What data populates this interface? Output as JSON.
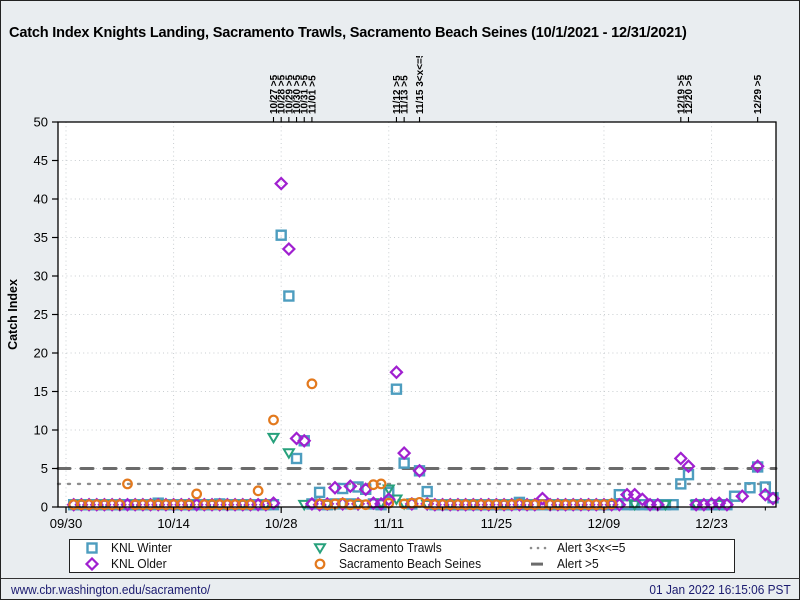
{
  "page": {
    "title": "Catch Index Knights Landing, Sacramento Trawls, Sacramento Beach Seines (10/1/2021 - 12/31/2021)",
    "footer": {
      "url": "www.cbr.washington.edu/sacramento/",
      "timestamp": "01 Jan 2022 16:15:06 PST"
    }
  },
  "chart_data": {
    "type": "scatter",
    "title": "Catch Index Knights Landing, Sacramento Trawls, Sacramento Beach Seines (10/1/2021 - 12/31/2021)",
    "xlabel": "",
    "ylabel": "Catch Index",
    "ylim": [
      0,
      50
    ],
    "yticks": [
      0,
      5,
      10,
      15,
      20,
      25,
      30,
      35,
      40,
      45,
      50
    ],
    "x_start_date": "09/30/2021",
    "xticks": [
      {
        "day": 0,
        "label": "09/30"
      },
      {
        "day": 14,
        "label": "10/14"
      },
      {
        "day": 28,
        "label": "10/28"
      },
      {
        "day": 42,
        "label": "11/11"
      },
      {
        "day": 56,
        "label": "11/25"
      },
      {
        "day": 70,
        "label": "12/09"
      },
      {
        "day": 84,
        "label": "12/23"
      }
    ],
    "minor_tick_days": [
      7,
      21,
      35,
      49,
      63,
      77,
      91
    ],
    "grid": true,
    "legend_position": "bottom",
    "colors": {
      "knl_winter": "#4d9dbf",
      "knl_older": "#a020d0",
      "sacramento_trawls": "#27a17c",
      "sacramento_beach_seines": "#e3791d",
      "alert_dotted": "#8c8c8c",
      "alert_dashed": "#6b6b6b",
      "gridline": "#c9ced1",
      "footer_text": "#1b1b70"
    },
    "alert_lines": [
      {
        "name": "Alert 3<x<=5",
        "value": 3,
        "style": "dotted",
        "color": "#8c8c8c"
      },
      {
        "name": "Alert >5",
        "value": 5,
        "style": "dashed",
        "color": "#6b6b6b"
      }
    ],
    "alert_annotations": [
      {
        "day": 27,
        "label": "10/27 >5"
      },
      {
        "day": 28,
        "label": "10/28 >5"
      },
      {
        "day": 29,
        "label": "10/29 >5"
      },
      {
        "day": 30,
        "label": "10/30 >5"
      },
      {
        "day": 31,
        "label": "10/31 >5"
      },
      {
        "day": 32,
        "label": "11/01 >5"
      },
      {
        "day": 43,
        "label": "11/12 >5"
      },
      {
        "day": 44,
        "label": "11/13 >5"
      },
      {
        "day": 46,
        "label": "11/15 3<x<=5"
      },
      {
        "day": 80,
        "label": "12/19 >5"
      },
      {
        "day": 81,
        "label": "12/20 >5"
      },
      {
        "day": 90,
        "label": "12/29 >5"
      }
    ],
    "series": [
      {
        "name": "KNL Winter",
        "marker": "square",
        "color": "#4d9dbf",
        "points": [
          [
            1,
            0.3
          ],
          [
            2,
            0.3
          ],
          [
            3,
            0.3
          ],
          [
            4,
            0.3
          ],
          [
            5,
            0.3
          ],
          [
            6,
            0.3
          ],
          [
            7,
            0.3
          ],
          [
            8,
            0.3
          ],
          [
            9,
            0.3
          ],
          [
            10,
            0.3
          ],
          [
            11,
            0.3
          ],
          [
            12,
            0.5
          ],
          [
            13,
            0.3
          ],
          [
            14,
            0.3
          ],
          [
            15,
            0.3
          ],
          [
            16,
            0.3
          ],
          [
            17,
            0.3
          ],
          [
            18,
            0.3
          ],
          [
            19,
            0.3
          ],
          [
            20,
            0.4
          ],
          [
            21,
            0.3
          ],
          [
            22,
            0.3
          ],
          [
            23,
            0.3
          ],
          [
            24,
            0.3
          ],
          [
            25,
            0.3
          ],
          [
            26,
            0.3
          ],
          [
            27,
            0.3
          ],
          [
            28,
            35.3
          ],
          [
            29,
            27.4
          ],
          [
            30,
            6.3
          ],
          [
            31,
            8.6
          ],
          [
            32,
            0.4
          ],
          [
            33,
            1.9
          ],
          [
            34,
            0.3
          ],
          [
            35,
            0.4
          ],
          [
            36,
            2.4
          ],
          [
            37,
            0.4
          ],
          [
            38,
            2.6
          ],
          [
            39,
            2.3
          ],
          [
            40,
            0.4
          ],
          [
            41,
            0.3
          ],
          [
            42,
            1.9
          ],
          [
            43,
            15.3
          ],
          [
            44,
            5.7
          ],
          [
            45,
            0.4
          ],
          [
            46,
            4.7
          ],
          [
            47,
            2.0
          ],
          [
            48,
            0.3
          ],
          [
            49,
            0.3
          ],
          [
            50,
            0.3
          ],
          [
            51,
            0.3
          ],
          [
            52,
            0.3
          ],
          [
            53,
            0.3
          ],
          [
            54,
            0.3
          ],
          [
            55,
            0.3
          ],
          [
            56,
            0.3
          ],
          [
            57,
            0.3
          ],
          [
            58,
            0.3
          ],
          [
            59,
            0.6
          ],
          [
            60,
            0.3
          ],
          [
            61,
            0.3
          ],
          [
            62,
            0.3
          ],
          [
            63,
            0.3
          ],
          [
            64,
            0.3
          ],
          [
            65,
            0.3
          ],
          [
            66,
            0.3
          ],
          [
            67,
            0.3
          ],
          [
            68,
            0.3
          ],
          [
            69,
            0.3
          ],
          [
            70,
            0.3
          ],
          [
            71,
            0.3
          ],
          [
            72,
            1.6
          ],
          [
            73,
            0.3
          ],
          [
            74,
            0.3
          ],
          [
            75,
            0.3
          ],
          [
            76,
            0.3
          ],
          [
            77,
            0.3
          ],
          [
            78,
            0.3
          ],
          [
            79,
            0.3
          ],
          [
            80,
            3.0
          ],
          [
            81,
            4.2
          ],
          [
            82,
            0.3
          ],
          [
            83,
            0.3
          ],
          [
            84,
            0.3
          ],
          [
            85,
            0.3
          ],
          [
            86,
            0.3
          ],
          [
            87,
            1.4
          ],
          [
            89,
            2.5
          ],
          [
            90,
            5.2
          ],
          [
            91,
            2.6
          ],
          [
            92,
            1.2
          ]
        ]
      },
      {
        "name": "KNL Older",
        "marker": "diamond",
        "color": "#a020d0",
        "points": [
          [
            1,
            0.3
          ],
          [
            2,
            0.3
          ],
          [
            3,
            0.3
          ],
          [
            4,
            0.3
          ],
          [
            5,
            0.3
          ],
          [
            6,
            0.3
          ],
          [
            7,
            0.3
          ],
          [
            8,
            0.3
          ],
          [
            9,
            0.3
          ],
          [
            10,
            0.3
          ],
          [
            11,
            0.3
          ],
          [
            12,
            0.3
          ],
          [
            13,
            0.3
          ],
          [
            14,
            0.3
          ],
          [
            15,
            0.3
          ],
          [
            16,
            0.3
          ],
          [
            17,
            0.3
          ],
          [
            18,
            0.3
          ],
          [
            19,
            0.3
          ],
          [
            20,
            0.3
          ],
          [
            21,
            0.3
          ],
          [
            22,
            0.3
          ],
          [
            23,
            0.3
          ],
          [
            24,
            0.3
          ],
          [
            25,
            0.3
          ],
          [
            26,
            0.3
          ],
          [
            27,
            0.5
          ],
          [
            28,
            42.0
          ],
          [
            29,
            33.5
          ],
          [
            30,
            8.9
          ],
          [
            31,
            8.6
          ],
          [
            32,
            0.4
          ],
          [
            33,
            0.3
          ],
          [
            34,
            0.4
          ],
          [
            35,
            2.5
          ],
          [
            36,
            0.4
          ],
          [
            37,
            2.7
          ],
          [
            38,
            0.4
          ],
          [
            39,
            2.3
          ],
          [
            40,
            0.5
          ],
          [
            41,
            0.4
          ],
          [
            42,
            1.0
          ],
          [
            43,
            17.5
          ],
          [
            44,
            7.0
          ],
          [
            45,
            0.4
          ],
          [
            46,
            4.7
          ],
          [
            47,
            0.4
          ],
          [
            48,
            0.3
          ],
          [
            49,
            0.3
          ],
          [
            50,
            0.3
          ],
          [
            51,
            0.3
          ],
          [
            52,
            0.3
          ],
          [
            53,
            0.3
          ],
          [
            54,
            0.3
          ],
          [
            55,
            0.3
          ],
          [
            56,
            0.3
          ],
          [
            57,
            0.3
          ],
          [
            58,
            0.3
          ],
          [
            59,
            0.3
          ],
          [
            60,
            0.3
          ],
          [
            61,
            0.3
          ],
          [
            62,
            1.1
          ],
          [
            63,
            0.3
          ],
          [
            64,
            0.3
          ],
          [
            65,
            0.3
          ],
          [
            66,
            0.3
          ],
          [
            67,
            0.3
          ],
          [
            68,
            0.3
          ],
          [
            69,
            0.3
          ],
          [
            70,
            0.3
          ],
          [
            71,
            0.3
          ],
          [
            72,
            0.3
          ],
          [
            73,
            1.6
          ],
          [
            74,
            1.6
          ],
          [
            75,
            1.0
          ],
          [
            76,
            0.3
          ],
          [
            77,
            0.3
          ],
          [
            80,
            6.3
          ],
          [
            81,
            5.3
          ],
          [
            82,
            0.3
          ],
          [
            83,
            0.3
          ],
          [
            84,
            0.4
          ],
          [
            85,
            0.5
          ],
          [
            86,
            0.3
          ],
          [
            88,
            1.4
          ],
          [
            90,
            5.3
          ],
          [
            91,
            1.6
          ],
          [
            92,
            1.1
          ]
        ]
      },
      {
        "name": "Sacramento Trawls",
        "marker": "triangle-down",
        "color": "#27a17c",
        "points": [
          [
            2,
            0.3
          ],
          [
            5,
            0.3
          ],
          [
            9,
            0.3
          ],
          [
            12,
            0.3
          ],
          [
            16,
            0.3
          ],
          [
            19,
            0.3
          ],
          [
            23,
            0.3
          ],
          [
            26,
            0.3
          ],
          [
            27,
            9.0
          ],
          [
            29,
            7.0
          ],
          [
            31,
            0.3
          ],
          [
            34,
            0.3
          ],
          [
            38,
            0.3
          ],
          [
            41,
            0.5
          ],
          [
            42,
            2.3
          ],
          [
            43,
            1.0
          ],
          [
            44,
            0.4
          ],
          [
            47,
            0.3
          ],
          [
            50,
            0.3
          ],
          [
            53,
            0.3
          ],
          [
            57,
            0.3
          ],
          [
            60,
            0.3
          ],
          [
            64,
            0.3
          ],
          [
            67,
            0.3
          ],
          [
            71,
            0.3
          ],
          [
            74,
            0.3
          ],
          [
            78,
            0.3
          ],
          [
            82,
            0.3
          ],
          [
            85,
            0.3
          ]
        ]
      },
      {
        "name": "Sacramento Beach Seines",
        "marker": "circle",
        "color": "#e3791d",
        "points": [
          [
            1,
            0.3
          ],
          [
            2,
            0.3
          ],
          [
            3,
            0.3
          ],
          [
            4,
            0.3
          ],
          [
            5,
            0.3
          ],
          [
            6,
            0.3
          ],
          [
            7,
            0.3
          ],
          [
            8,
            3.0
          ],
          [
            9,
            0.3
          ],
          [
            10,
            0.3
          ],
          [
            11,
            0.3
          ],
          [
            12,
            0.3
          ],
          [
            13,
            0.3
          ],
          [
            14,
            0.3
          ],
          [
            15,
            0.3
          ],
          [
            16,
            0.3
          ],
          [
            17,
            1.7
          ],
          [
            18,
            0.3
          ],
          [
            19,
            0.3
          ],
          [
            20,
            0.3
          ],
          [
            21,
            0.3
          ],
          [
            22,
            0.3
          ],
          [
            23,
            0.3
          ],
          [
            24,
            0.3
          ],
          [
            25,
            2.1
          ],
          [
            26,
            0.3
          ],
          [
            27,
            11.3
          ],
          [
            32,
            16.0
          ],
          [
            33,
            0.4
          ],
          [
            34,
            0.3
          ],
          [
            35,
            0.4
          ],
          [
            36,
            0.5
          ],
          [
            37,
            0.3
          ],
          [
            38,
            0.4
          ],
          [
            39,
            0.3
          ],
          [
            40,
            2.9
          ],
          [
            41,
            3.0
          ],
          [
            42,
            0.5
          ],
          [
            44,
            0.4
          ],
          [
            45,
            0.5
          ],
          [
            46,
            0.6
          ],
          [
            47,
            0.4
          ],
          [
            48,
            0.3
          ],
          [
            49,
            0.3
          ],
          [
            50,
            0.3
          ],
          [
            51,
            0.3
          ],
          [
            52,
            0.3
          ],
          [
            53,
            0.3
          ],
          [
            54,
            0.3
          ],
          [
            55,
            0.3
          ],
          [
            56,
            0.3
          ],
          [
            57,
            0.3
          ],
          [
            58,
            0.3
          ],
          [
            59,
            0.4
          ],
          [
            60,
            0.3
          ],
          [
            61,
            0.3
          ],
          [
            62,
            0.3
          ],
          [
            63,
            0.3
          ],
          [
            64,
            0.3
          ],
          [
            65,
            0.3
          ],
          [
            66,
            0.3
          ],
          [
            67,
            0.3
          ],
          [
            68,
            0.3
          ],
          [
            69,
            0.3
          ],
          [
            70,
            0.3
          ],
          [
            71,
            0.4
          ]
        ]
      }
    ],
    "legend_entries_order": [
      "KNL Winter",
      "Sacramento Trawls",
      "Alert 3<x<=5",
      "KNL Older",
      "Sacramento Beach Seines",
      "Alert >5"
    ]
  }
}
